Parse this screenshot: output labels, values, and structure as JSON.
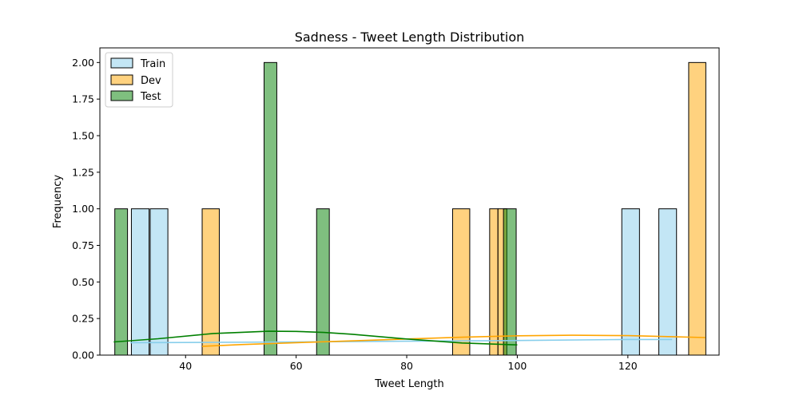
{
  "chart_data": {
    "type": "bar",
    "title": "Sadness - Tweet Length Distribution",
    "xlabel": "Tweet Length",
    "ylabel": "Frequency",
    "xlim": [
      24.5,
      136.5
    ],
    "ylim": [
      0,
      2.1
    ],
    "xticks": [
      40,
      60,
      80,
      100,
      120
    ],
    "yticks": [
      0.0,
      0.25,
      0.5,
      0.75,
      1.0,
      1.25,
      1.5,
      1.75,
      2.0
    ],
    "ytick_labels": [
      "0.00",
      "0.25",
      "0.50",
      "0.75",
      "1.00",
      "1.25",
      "1.50",
      "1.75",
      "2.00"
    ],
    "legend_position": "top-left",
    "grid": false,
    "series": [
      {
        "name": "Train",
        "color": "#87ceeb",
        "kde_color": "#87ceeb",
        "bins": [
          {
            "start": 30.2,
            "end": 33.4,
            "count": 1
          },
          {
            "start": 33.6,
            "end": 36.8,
            "count": 1
          },
          {
            "start": 118.9,
            "end": 122.1,
            "count": 1
          },
          {
            "start": 125.6,
            "end": 128.8,
            "count": 1
          }
        ],
        "kde": [
          [
            30,
            0.085
          ],
          [
            40,
            0.086
          ],
          [
            60,
            0.09
          ],
          [
            80,
            0.095
          ],
          [
            100,
            0.1
          ],
          [
            120,
            0.107
          ],
          [
            128,
            0.107
          ]
        ]
      },
      {
        "name": "Dev",
        "color": "#ffa500",
        "kde_color": "#ffa500",
        "bins": [
          {
            "start": 43.0,
            "end": 46.1,
            "count": 1
          },
          {
            "start": 88.3,
            "end": 91.4,
            "count": 1
          },
          {
            "start": 95.0,
            "end": 96.5,
            "count": 1
          },
          {
            "start": 96.5,
            "end": 98.1,
            "count": 1
          },
          {
            "start": 131.0,
            "end": 134.1,
            "count": 2
          }
        ],
        "kde": [
          [
            43,
            0.06
          ],
          [
            50,
            0.072
          ],
          [
            60,
            0.085
          ],
          [
            70,
            0.097
          ],
          [
            80,
            0.11
          ],
          [
            90,
            0.122
          ],
          [
            100,
            0.132
          ],
          [
            110,
            0.136
          ],
          [
            120,
            0.133
          ],
          [
            128,
            0.126
          ],
          [
            134,
            0.12
          ]
        ]
      },
      {
        "name": "Test",
        "color": "#008000",
        "kde_color": "#008000",
        "bins": [
          {
            "start": 27.2,
            "end": 29.5,
            "count": 1
          },
          {
            "start": 54.2,
            "end": 56.5,
            "count": 2
          },
          {
            "start": 63.7,
            "end": 66.0,
            "count": 1
          },
          {
            "start": 97.5,
            "end": 99.8,
            "count": 1
          }
        ],
        "kde": [
          [
            27,
            0.09
          ],
          [
            35,
            0.112
          ],
          [
            45,
            0.148
          ],
          [
            55,
            0.163
          ],
          [
            60,
            0.162
          ],
          [
            65,
            0.155
          ],
          [
            70,
            0.143
          ],
          [
            80,
            0.11
          ],
          [
            90,
            0.083
          ],
          [
            100,
            0.07
          ]
        ]
      }
    ]
  }
}
